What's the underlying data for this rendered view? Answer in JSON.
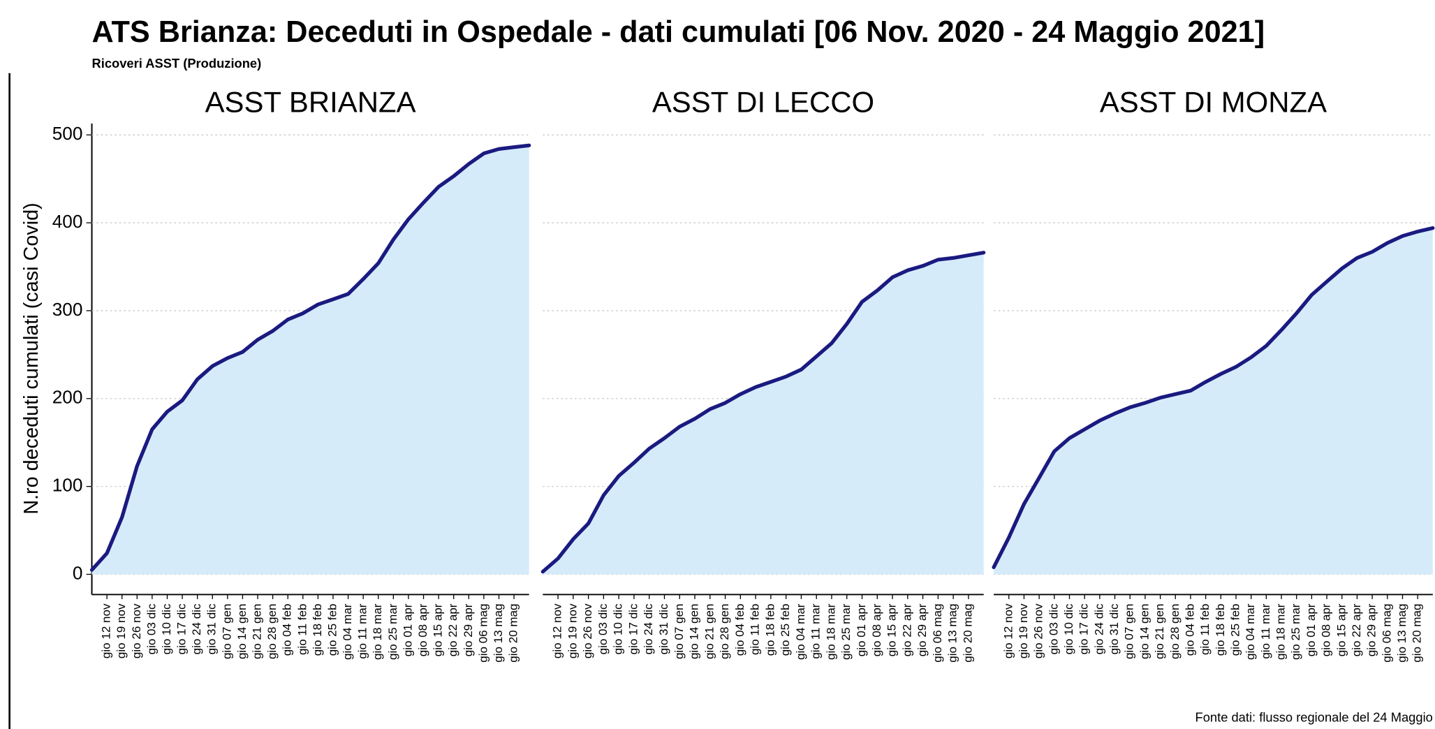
{
  "title": "ATS Brianza: Deceduti in Ospedale - dati cumulati [06 Nov. 2020 - 24 Maggio 2021]",
  "subtitle": "Ricoveri ASST (Produzione)",
  "ylabel": "N.ro deceduti cumulati (casi Covid)",
  "source": "Fonte dati: flusso regionale del 24 Maggio",
  "ylim": [
    -23,
    513
  ],
  "yticks": [
    0,
    100,
    200,
    300,
    400,
    500
  ],
  "grid": true,
  "chart_data": [
    {
      "type": "area",
      "title": "ASST BRIANZA",
      "color": "#1a1a80",
      "fill": "#d6ebfa",
      "categories": [
        null,
        "gio 12 nov",
        "gio 19 nov",
        "gio 26 nov",
        "gio 03 dic",
        "gio 10 dic",
        "gio 17 dic",
        "gio 24 dic",
        "gio 31 dic",
        "gio 07 gen",
        "gio 14 gen",
        "gio 21 gen",
        "gio 28 gen",
        "gio 04 feb",
        "gio 11 feb",
        "gio 18 feb",
        "gio 25 feb",
        "gio 04 mar",
        "gio 11 mar",
        "gio 18 mar",
        "gio 25 mar",
        "gio 01 apr",
        "gio 08 apr",
        "gio 15 apr",
        "gio 22 apr",
        "gio 29 apr",
        "gio 06 mag",
        "gio 13 mag",
        "gio 20 mag",
        null
      ],
      "values": [
        5,
        24,
        65,
        123,
        165,
        185,
        198,
        222,
        237,
        246,
        253,
        267,
        277,
        290,
        297,
        307,
        313,
        319,
        336,
        354,
        381,
        404,
        423,
        441,
        453,
        467,
        479,
        484,
        486,
        488
      ]
    },
    {
      "type": "area",
      "title": "ASST DI LECCO",
      "color": "#1a1a80",
      "fill": "#d6ebfa",
      "categories": [
        null,
        "gio 12 nov",
        "gio 19 nov",
        "gio 26 nov",
        "gio 03 dic",
        "gio 10 dic",
        "gio 17 dic",
        "gio 24 dic",
        "gio 31 dic",
        "gio 07 gen",
        "gio 14 gen",
        "gio 21 gen",
        "gio 28 gen",
        "gio 04 feb",
        "gio 11 feb",
        "gio 18 feb",
        "gio 25 feb",
        "gio 04 mar",
        "gio 11 mar",
        "gio 18 mar",
        "gio 25 mar",
        "gio 01 apr",
        "gio 08 apr",
        "gio 15 apr",
        "gio 22 apr",
        "gio 29 apr",
        "gio 06 mag",
        "gio 13 mag",
        "gio 20 mag",
        null
      ],
      "values": [
        3,
        18,
        40,
        58,
        90,
        112,
        127,
        143,
        155,
        168,
        177,
        188,
        195,
        205,
        213,
        219,
        225,
        233,
        248,
        263,
        285,
        310,
        323,
        338,
        346,
        351,
        358,
        360,
        363,
        366
      ]
    },
    {
      "type": "area",
      "title": "ASST DI MONZA",
      "color": "#1a1a80",
      "fill": "#d6ebfa",
      "categories": [
        null,
        "gio 12 nov",
        "gio 19 nov",
        "gio 26 nov",
        "gio 03 dic",
        "gio 10 dic",
        "gio 17 dic",
        "gio 24 dic",
        "gio 31 dic",
        "gio 07 gen",
        "gio 14 gen",
        "gio 21 gen",
        "gio 28 gen",
        "gio 04 feb",
        "gio 11 feb",
        "gio 18 feb",
        "gio 25 feb",
        "gio 04 mar",
        "gio 11 mar",
        "gio 18 mar",
        "gio 25 mar",
        "gio 01 apr",
        "gio 08 apr",
        "gio 15 apr",
        "gio 22 apr",
        "gio 29 apr",
        "gio 06 mag",
        "gio 13 mag",
        "gio 20 mag",
        null
      ],
      "values": [
        8,
        42,
        80,
        110,
        140,
        155,
        165,
        175,
        183,
        190,
        195,
        201,
        205,
        209,
        219,
        228,
        236,
        247,
        260,
        278,
        297,
        318,
        333,
        348,
        360,
        367,
        377,
        385,
        390,
        394
      ]
    }
  ]
}
